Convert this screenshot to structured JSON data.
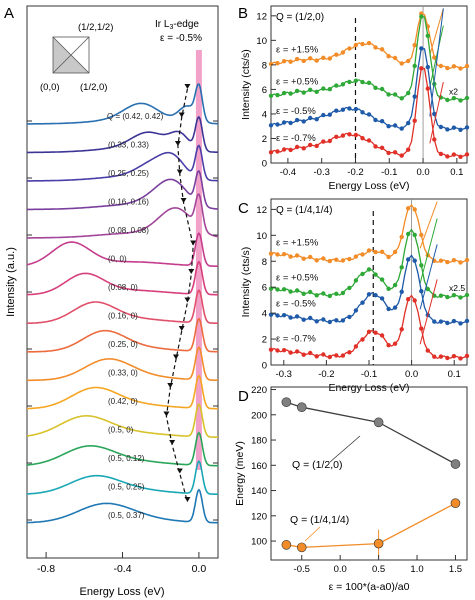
{
  "figure": {
    "panel_labels": [
      "A",
      "B",
      "C",
      "D"
    ]
  },
  "chart_data": [
    {
      "panel": "A",
      "type": "line",
      "title": "Ir L3-edge",
      "title_main": "Ir L",
      "title_sub": "3",
      "title_tail": "-edge",
      "strain": "ε = -0.5%",
      "xlabel": "Energy Loss (eV)",
      "ylabel": "Intensity (a.u.)",
      "xlim": [
        -0.9,
        0.1
      ],
      "xticks": [
        "-0.8",
        "-0.4",
        "0.0"
      ],
      "xtick_values": [
        -0.8,
        -0.4,
        0.0
      ],
      "inset_labels": [
        "(1/2,1/2)",
        "(0,0)",
        "(1/2,0)"
      ],
      "colors": [
        "#2a6fb0",
        "#3c3595",
        "#4a3fa8",
        "#7a3f9e",
        "#a24699",
        "#c43d8c",
        "#d63f7c",
        "#e0506a",
        "#ec6a3c",
        "#f28c2a",
        "#f5a623",
        "#d8c22b",
        "#2aa55a",
        "#19a7b5",
        "#1f78b4"
      ],
      "series": [
        {
          "name": "Q = (0.42, 0.42)",
          "mag_e": -0.06,
          "mag_w": 0.045,
          "mag_a": 0.9
        },
        {
          "name": "(0.33, 0.33)",
          "mag_e": -0.1,
          "mag_w": 0.05,
          "mag_a": 0.85
        },
        {
          "name": "(0.25, 0.25)",
          "mag_e": -0.13,
          "mag_w": 0.06,
          "mag_a": 0.8
        },
        {
          "name": "(0.16, 0.16)",
          "mag_e": -0.12,
          "mag_w": 0.07,
          "mag_a": 0.75
        },
        {
          "name": "(0.08, 0.08)",
          "mag_e": -0.1,
          "mag_w": 0.08,
          "mag_a": 0.7
        },
        {
          "name": "(0, 0)",
          "mag_e": -0.67,
          "mag_w": 0.1,
          "mag_a": 1.3
        },
        {
          "name": "(0.08, 0)",
          "mag_e": -0.6,
          "mag_w": 0.1,
          "mag_a": 1.1
        },
        {
          "name": "(0.16, 0)",
          "mag_e": -0.55,
          "mag_w": 0.11,
          "mag_a": 1.05
        },
        {
          "name": "(0.25, 0)",
          "mag_e": -0.5,
          "mag_w": 0.11,
          "mag_a": 1.0
        },
        {
          "name": "(0.33, 0)",
          "mag_e": -0.48,
          "mag_w": 0.12,
          "mag_a": 1.0
        },
        {
          "name": "(0.42, 0)",
          "mag_e": -0.55,
          "mag_w": 0.12,
          "mag_a": 1.05
        },
        {
          "name": "(0.5, 0)",
          "mag_e": -0.6,
          "mag_w": 0.13,
          "mag_a": 1.1
        },
        {
          "name": "(0.5, 0.12)",
          "mag_e": -0.58,
          "mag_w": 0.13,
          "mag_a": 1.0
        },
        {
          "name": "(0.5, 0.25)",
          "mag_e": -0.55,
          "mag_w": 0.13,
          "mag_a": 0.9
        },
        {
          "name": "(0.5, 0.37)",
          "mag_e": -0.5,
          "mag_w": 0.14,
          "mag_a": 0.9
        }
      ]
    },
    {
      "panel": "B",
      "type": "line",
      "q_label": "Q = (1/2,0)",
      "xlabel": "Energy Loss (eV)",
      "ylabel": "Intensity (cts/s)",
      "xlim": [
        -0.45,
        0.13
      ],
      "ylim": [
        0,
        12.8
      ],
      "xticks": [
        "-0.4",
        "-0.3",
        "-0.2",
        "-0.1",
        "0.0",
        "0.1"
      ],
      "xtick_values": [
        -0.4,
        -0.3,
        -0.2,
        -0.1,
        0.0,
        0.1
      ],
      "yticks": [
        "0",
        "2",
        "4",
        "6",
        "8",
        "10",
        "12"
      ],
      "ytick_values": [
        0,
        2,
        4,
        6,
        8,
        10,
        12
      ],
      "dashed_line_x": -0.2,
      "scale_label": "x2",
      "series": [
        {
          "name": "ε = +1.5%",
          "color": "#f28c28",
          "offset": 7.8,
          "mag_e": -0.17,
          "mag_a": 1.9,
          "el_a": 4.5,
          "steep": 6
        },
        {
          "name": "ε = +0.5%",
          "color": "#2ea836",
          "offset": 5.2,
          "mag_e": -0.19,
          "mag_a": 1.4,
          "el_a": 7.0,
          "steep": 6
        },
        {
          "name": "ε = -0.5%",
          "color": "#1e5aa8",
          "offset": 2.8,
          "mag_e": -0.21,
          "mag_a": 1.5,
          "el_a": 6.8,
          "steep": 10
        },
        {
          "name": "ε = -0.7%",
          "color": "#e03028",
          "offset": 0.6,
          "mag_e": -0.21,
          "mag_a": 1.6,
          "el_a": 7.4,
          "steep": 6
        }
      ]
    },
    {
      "panel": "C",
      "type": "line",
      "q_label": "Q = (1/4,1/4)",
      "xlabel": "Energy Loss (eV)",
      "ylabel": "Intensity (cts/s)",
      "xlim": [
        -0.33,
        0.13
      ],
      "ylim": [
        0,
        12.8
      ],
      "xticks": [
        "-0.3",
        "-0.2",
        "-0.1",
        "0.0",
        "0.1"
      ],
      "xtick_values": [
        -0.3,
        -0.2,
        -0.1,
        0.0,
        0.1
      ],
      "yticks": [
        "0",
        "2",
        "4",
        "6",
        "8",
        "10",
        "12"
      ],
      "ytick_values": [
        0,
        2,
        4,
        6,
        8,
        10,
        12
      ],
      "dashed_line_x": -0.09,
      "scale_label": "x2.5",
      "series": [
        {
          "name": "ε = +1.5%",
          "color": "#f28c28",
          "offset": 8.0,
          "mag_e": -0.09,
          "mag_a": 0.8,
          "el_a": 4.4,
          "steep": 6
        },
        {
          "name": "ε = +0.5%",
          "color": "#2ea836",
          "offset": 5.3,
          "mag_e": -0.1,
          "mag_a": 2.0,
          "el_a": 5.2,
          "steep": 6
        },
        {
          "name": "ε = -0.5%",
          "color": "#1e5aa8",
          "offset": 3.3,
          "mag_e": -0.09,
          "mag_a": 2.2,
          "el_a": 5.2,
          "steep": 6
        },
        {
          "name": "ε = -0.7%",
          "color": "#e03028",
          "offset": 0.6,
          "mag_e": -0.09,
          "mag_a": 2.0,
          "el_a": 4.8,
          "steep": 6
        }
      ]
    },
    {
      "panel": "D",
      "type": "line",
      "xlabel": "ε = 100*(a-a0)/a0",
      "ylabel": "Energy (meV)",
      "xlim": [
        -0.9,
        1.65
      ],
      "ylim": [
        85,
        222
      ],
      "xticks": [
        "-0.5",
        "0.0",
        "0.5",
        "1.0",
        "1.5"
      ],
      "xtick_values": [
        -0.5,
        0.0,
        0.5,
        1.0,
        1.5
      ],
      "yticks": [
        "100",
        "120",
        "140",
        "160",
        "180",
        "200",
        "220"
      ],
      "ytick_values": [
        100,
        120,
        140,
        160,
        180,
        200,
        220
      ],
      "series": [
        {
          "name": "Q = (1/2,0)",
          "color": "#808080",
          "line_color": "#404040",
          "x": [
            -0.7,
            -0.5,
            0.5,
            1.5
          ],
          "y": [
            210,
            206,
            194,
            161
          ],
          "err": [
            0,
            0,
            0,
            0
          ]
        },
        {
          "name": "Q = (1/4,1/4)",
          "color": "#f28c28",
          "line_color": "#f28c28",
          "x": [
            -0.7,
            -0.5,
            0.5,
            1.5
          ],
          "y": [
            97,
            95,
            98,
            130
          ],
          "err": [
            3,
            0,
            11,
            0
          ]
        }
      ]
    }
  ]
}
